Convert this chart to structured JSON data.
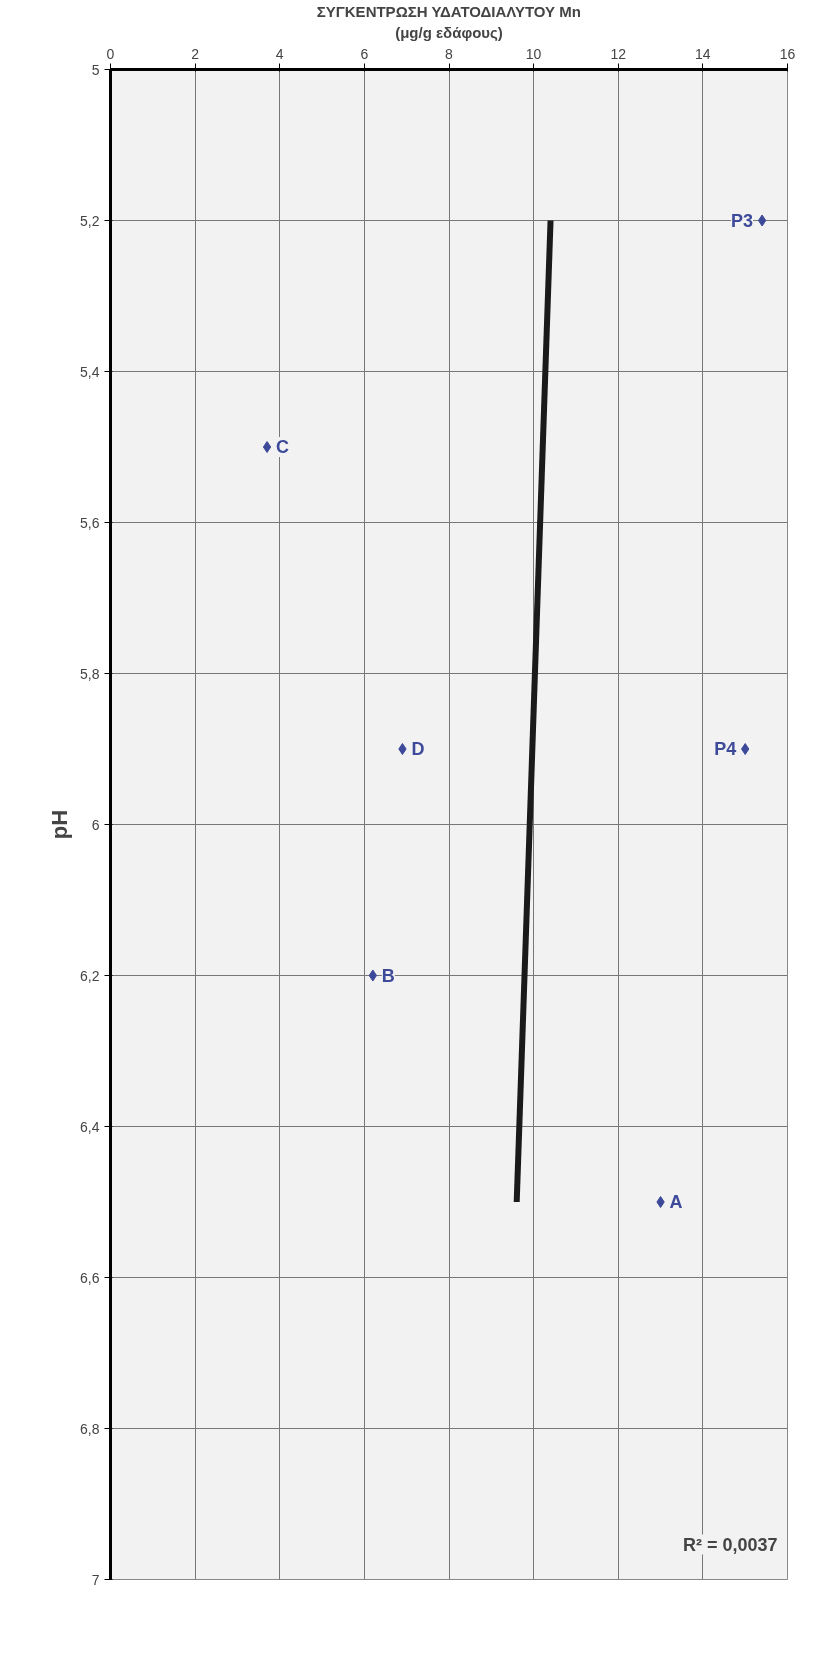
{
  "chart_data": {
    "type": "scatter",
    "xlabel": "ΣΥΓΚΕΝΤΡΩΣΗ ΥΔΑΤΟΔΙΑΛΥΤΟΥ Mn\n(μg/g εδάφους)",
    "ylabel": "pH",
    "xlim": [
      0,
      16
    ],
    "xticks": [
      0,
      2,
      4,
      6,
      8,
      10,
      12,
      14,
      16
    ],
    "ylim": [
      7,
      5
    ],
    "yticks": [
      {
        "value": 5,
        "label": "5"
      },
      {
        "value": 5.2,
        "label": "5,2"
      },
      {
        "value": 5.4,
        "label": "5,4"
      },
      {
        "value": 5.6,
        "label": "5,6"
      },
      {
        "value": 5.8,
        "label": "5,8"
      },
      {
        "value": 6,
        "label": "6"
      },
      {
        "value": 6.2,
        "label": "6,2"
      },
      {
        "value": 6.4,
        "label": "6,4"
      },
      {
        "value": 6.6,
        "label": "6,6"
      },
      {
        "value": 6.8,
        "label": "6,8"
      },
      {
        "value": 7,
        "label": "7"
      }
    ],
    "series": [
      {
        "type": "scatter",
        "color": "#3d4a9a",
        "marker": "diamond",
        "x": [
          15.4,
          3.7,
          15.0,
          6.9,
          6.2,
          13.0
        ],
        "values": [
          5.2,
          5.5,
          5.9,
          5.9,
          6.2,
          6.5
        ]
      },
      {
        "type": "line",
        "color": "#1a1a1a",
        "line_style": "solid",
        "x": [
          10.4,
          9.6
        ],
        "values": [
          5.2,
          6.5
        ]
      }
    ],
    "annotations": [
      {
        "text": "P3",
        "x": 15.4,
        "y": 5.2
      },
      {
        "text": "C",
        "x": 3.7,
        "y": 5.5
      },
      {
        "text": "P4",
        "x": 15.0,
        "y": 5.9
      },
      {
        "text": "D",
        "x": 6.9,
        "y": 5.9
      },
      {
        "text": "B",
        "x": 6.2,
        "y": 6.2
      },
      {
        "text": "A",
        "x": 13.0,
        "y": 6.5
      },
      "R² = 0,0037"
    ],
    "grid": true
  }
}
